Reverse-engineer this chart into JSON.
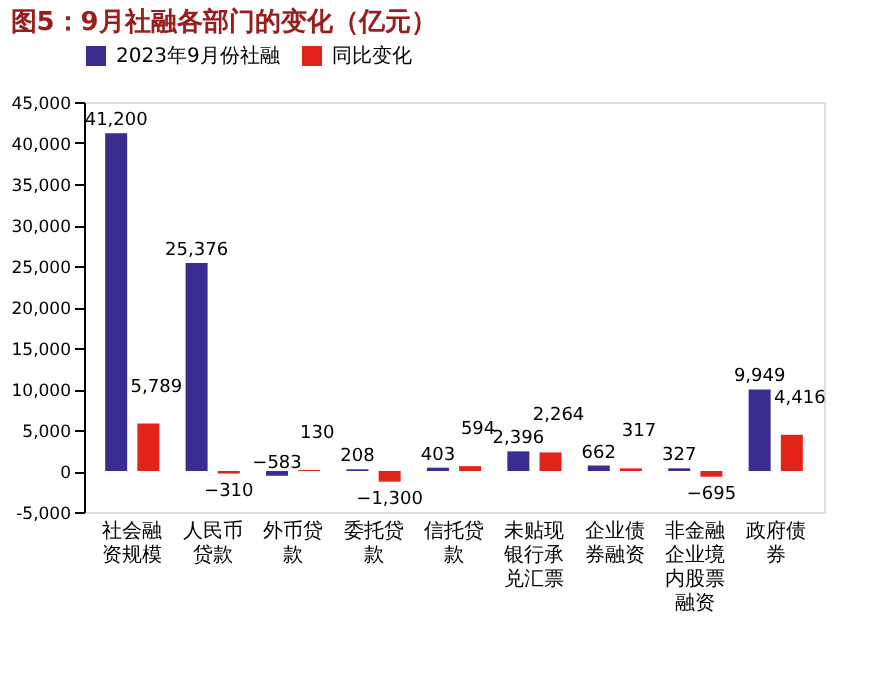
{
  "chart_data": {
    "type": "bar",
    "title": "图5：9月社融各部门的变化（亿元）",
    "categories": [
      "社会融资规模",
      "人民币贷款",
      "外币贷款",
      "委托贷款",
      "信托贷款",
      "未贴现银行承兑汇票",
      "企业债券融资",
      "非金融企业境内股票融资",
      "政府债券"
    ],
    "series": [
      {
        "name": "2023年9月份社融",
        "color": "#3a2d91",
        "values": [
          41200,
          25376,
          -583,
          208,
          403,
          2396,
          662,
          327,
          9949
        ],
        "value_labels": [
          "41,200",
          "25,376",
          "−583",
          "208",
          "403",
          "2,396",
          "662",
          "327",
          "9,949"
        ]
      },
      {
        "name": "同比变化",
        "color": "#e2231a",
        "values": [
          5789,
          -310,
          130,
          -1300,
          594,
          2264,
          317,
          -695,
          4416
        ],
        "value_labels": [
          "5,789",
          "−310",
          "130",
          "−1,300",
          "594",
          "2,264",
          "317",
          "−695",
          "4,416"
        ]
      }
    ],
    "ylim": [
      -5000,
      45000
    ],
    "yticks": [
      {
        "value": -5000,
        "label": "-5,000"
      },
      {
        "value": 0,
        "label": "0"
      },
      {
        "value": 5000,
        "label": "5,000"
      },
      {
        "value": 10000,
        "label": "10,000"
      },
      {
        "value": 15000,
        "label": "15,000"
      },
      {
        "value": 20000,
        "label": "20,000"
      },
      {
        "value": 25000,
        "label": "25,000"
      },
      {
        "value": 30000,
        "label": "30,000"
      },
      {
        "value": 35000,
        "label": "35,000"
      },
      {
        "value": 40000,
        "label": "40,000"
      },
      {
        "value": 45000,
        "label": "45,000"
      }
    ],
    "data_labels": true,
    "legend": "top",
    "grid": false
  }
}
